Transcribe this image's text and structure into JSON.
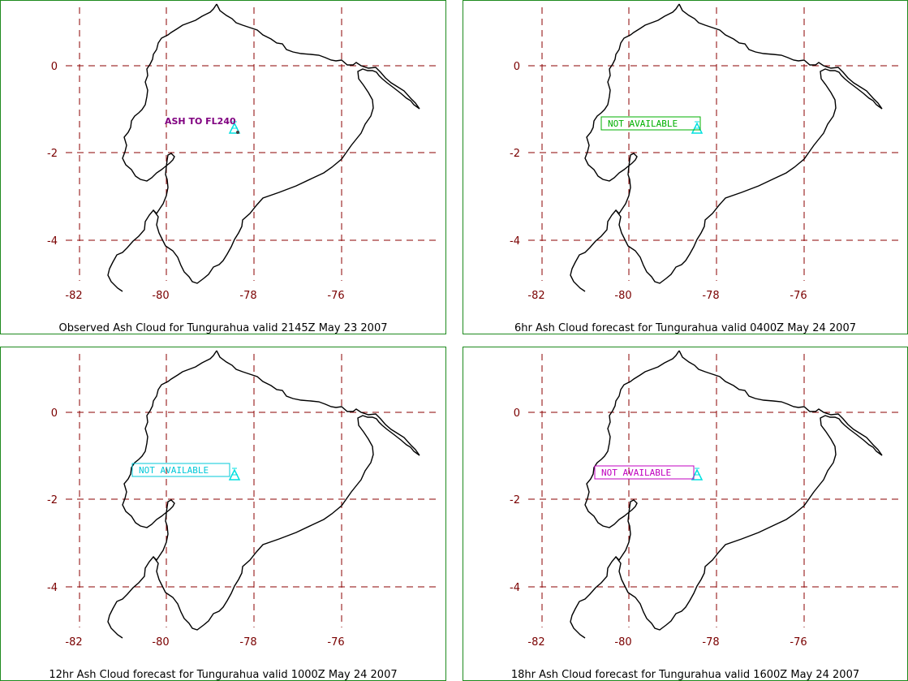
{
  "panels": [
    {
      "caption": "Observed Ash Cloud for Tungurahua valid 2145Z May 23 2007",
      "annotation": "ASH TO FL240",
      "annotation_style": "label",
      "annotation_color": "#800080"
    },
    {
      "caption": "6hr Ash Cloud forecast for Tungurahua valid 0400Z May 24 2007",
      "annotation": "NOT AVAILABLE",
      "annotation_style": "box",
      "annotation_color": "#00b000"
    },
    {
      "caption": "12hr Ash Cloud forecast for Tungurahua valid 1000Z May 24 2007",
      "annotation": "NOT AVAILABLE",
      "annotation_style": "box",
      "annotation_color": "#00c8d8"
    },
    {
      "caption": "18hr Ash Cloud forecast for Tungurahua valid 1600Z May 24 2007",
      "annotation": "NOT AVAILABLE",
      "annotation_style": "box",
      "annotation_color": "#c000c0"
    }
  ],
  "map": {
    "lon_ticks": [
      "-82",
      "-80",
      "-78",
      "-76"
    ],
    "lat_ticks": [
      "0",
      "-2",
      "-4"
    ],
    "volcano_icon": "triangle-volcano-icon",
    "volcano_color": "#00e0e0",
    "grid_color": "#8b0000",
    "coast_color": "#000000"
  }
}
